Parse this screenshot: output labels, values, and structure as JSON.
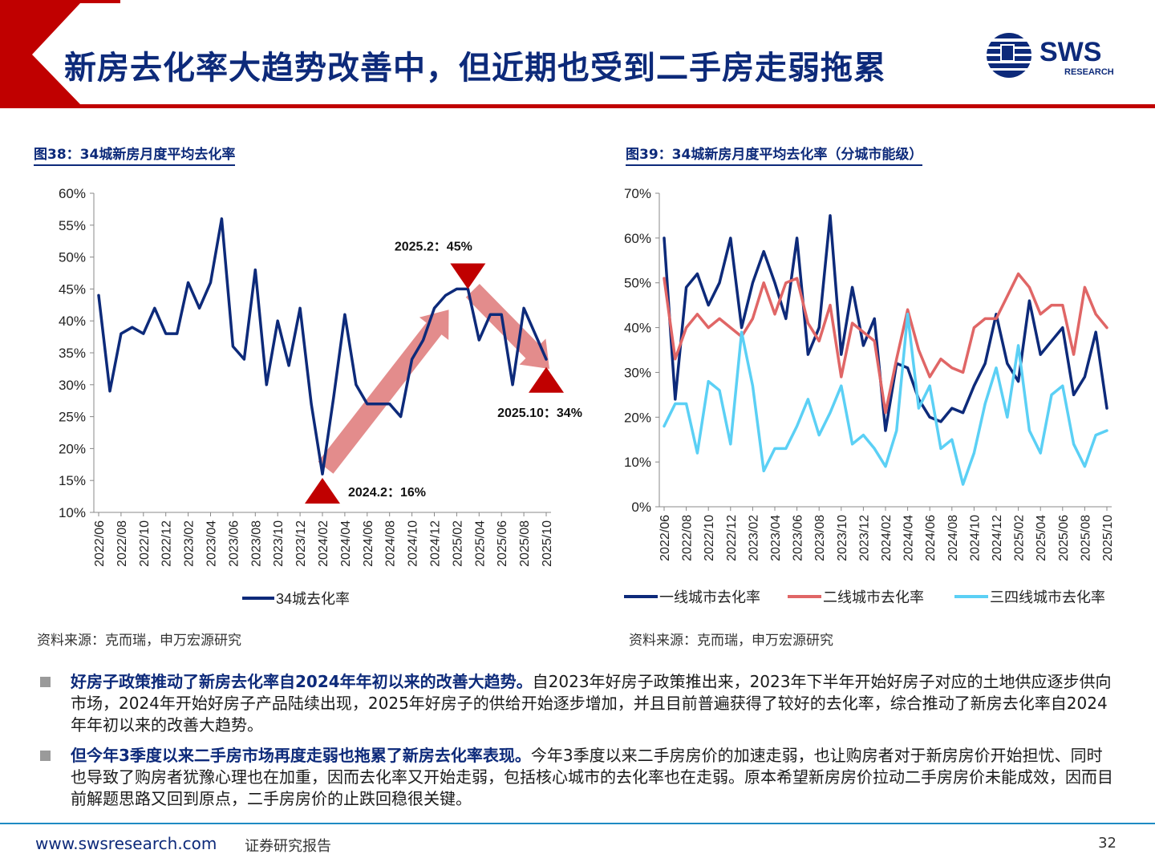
{
  "header": {
    "title": "新房去化率大趋势改善中，但近期也受到二手房走弱拖累",
    "logo_text": "SWS",
    "logo_subtext": "RESEARCH"
  },
  "colors": {
    "brand_navy": "#0d2a7a",
    "brand_red": "#c00000",
    "tier1": "#0d2a7a",
    "tier2": "#e06666",
    "tier3": "#5bd0f5",
    "arrow": "#e07f7f",
    "footer_line": "#1e8bc3"
  },
  "figures": {
    "left_caption": "图38：34城新房月度平均去化率",
    "right_caption": "图39：34城新房月度平均去化率（分城市能级）",
    "left_source": "资料来源：克而瑞，申万宏源研究",
    "right_source": "资料来源：克而瑞，申万宏源研究"
  },
  "chart_data": [
    {
      "type": "line",
      "title": "",
      "xlabel": "",
      "ylabel": "",
      "ylim": [
        0.1,
        0.6
      ],
      "ytick_labels": [
        "10%",
        "15%",
        "20%",
        "25%",
        "30%",
        "35%",
        "40%",
        "45%",
        "50%",
        "55%",
        "60%"
      ],
      "grid": false,
      "legend_position": "bottom",
      "x_tick_labels": [
        "2022/06",
        "2022/08",
        "2022/10",
        "2022/12",
        "2023/02",
        "2023/04",
        "2023/06",
        "2023/08",
        "2023/10",
        "2023/12",
        "2024/02",
        "2024/04",
        "2024/06",
        "2024/08",
        "2024/10",
        "2024/12",
        "2025/02",
        "2025/04",
        "2025/06",
        "2025/08",
        "2025/10"
      ],
      "x": [
        "2022/06",
        "2022/07",
        "2022/08",
        "2022/09",
        "2022/10",
        "2022/11",
        "2022/12",
        "2023/01",
        "2023/02",
        "2023/03",
        "2023/04",
        "2023/05",
        "2023/06",
        "2023/07",
        "2023/08",
        "2023/09",
        "2023/10",
        "2023/11",
        "2023/12",
        "2024/01",
        "2024/02",
        "2024/03",
        "2024/04",
        "2024/05",
        "2024/06",
        "2024/07",
        "2024/08",
        "2024/09",
        "2024/10",
        "2024/11",
        "2024/12",
        "2025/01",
        "2025/02",
        "2025/03",
        "2025/04",
        "2025/05",
        "2025/06",
        "2025/07",
        "2025/08",
        "2025/09",
        "2025/10"
      ],
      "series": [
        {
          "name": "34城去化率",
          "color": "#0d2a7a",
          "values": [
            0.44,
            0.29,
            0.38,
            0.39,
            0.38,
            0.42,
            0.38,
            0.38,
            0.46,
            0.42,
            0.46,
            0.56,
            0.36,
            0.34,
            0.48,
            0.3,
            0.4,
            0.33,
            0.42,
            0.27,
            0.16,
            0.28,
            0.41,
            0.3,
            0.27,
            0.27,
            0.27,
            0.25,
            0.34,
            0.37,
            0.42,
            0.44,
            0.45,
            0.45,
            0.37,
            0.41,
            0.41,
            0.3,
            0.42,
            0.38,
            0.34
          ]
        }
      ],
      "annotations": [
        {
          "label": "2025.2：45%",
          "x": "2025/03"
        },
        {
          "label": "2024.2：16%",
          "x": "2024/02"
        },
        {
          "label": "2025.10：34%",
          "x": "2025/10"
        }
      ]
    },
    {
      "type": "line",
      "title": "",
      "xlabel": "",
      "ylabel": "",
      "ylim": [
        0,
        0.7
      ],
      "ytick_labels": [
        "0%",
        "10%",
        "20%",
        "30%",
        "40%",
        "50%",
        "60%",
        "70%"
      ],
      "grid": false,
      "legend_position": "bottom",
      "x_tick_labels": [
        "2022/06",
        "2022/08",
        "2022/10",
        "2022/12",
        "2023/02",
        "2023/04",
        "2023/06",
        "2023/08",
        "2023/10",
        "2023/12",
        "2024/02",
        "2024/04",
        "2024/06",
        "2024/08",
        "2024/10",
        "2024/12",
        "2025/02",
        "2025/04",
        "2025/06",
        "2025/08",
        "2025/10"
      ],
      "x": [
        "2022/06",
        "2022/07",
        "2022/08",
        "2022/09",
        "2022/10",
        "2022/11",
        "2022/12",
        "2023/01",
        "2023/02",
        "2023/03",
        "2023/04",
        "2023/05",
        "2023/06",
        "2023/07",
        "2023/08",
        "2023/09",
        "2023/10",
        "2023/11",
        "2023/12",
        "2024/01",
        "2024/02",
        "2024/03",
        "2024/04",
        "2024/05",
        "2024/06",
        "2024/07",
        "2024/08",
        "2024/09",
        "2024/10",
        "2024/11",
        "2024/12",
        "2025/01",
        "2025/02",
        "2025/03",
        "2025/04",
        "2025/05",
        "2025/06",
        "2025/07",
        "2025/08",
        "2025/09",
        "2025/10"
      ],
      "series": [
        {
          "name": "一线城市去化率",
          "color": "#0d2a7a",
          "values": [
            0.6,
            0.24,
            0.49,
            0.52,
            0.45,
            0.5,
            0.6,
            0.4,
            0.5,
            0.57,
            0.5,
            0.42,
            0.6,
            0.34,
            0.4,
            0.65,
            0.34,
            0.49,
            0.36,
            0.42,
            0.17,
            0.32,
            0.31,
            0.24,
            0.2,
            0.19,
            0.22,
            0.21,
            0.27,
            0.32,
            0.43,
            0.32,
            0.28,
            0.46,
            0.34,
            0.37,
            0.4,
            0.25,
            0.29,
            0.39,
            0.22
          ]
        },
        {
          "name": "二线城市去化率",
          "color": "#e06666",
          "values": [
            0.51,
            0.33,
            0.4,
            0.43,
            0.4,
            0.42,
            0.4,
            0.38,
            0.42,
            0.5,
            0.43,
            0.5,
            0.51,
            0.41,
            0.37,
            0.45,
            0.29,
            0.41,
            0.39,
            0.37,
            0.21,
            0.33,
            0.44,
            0.35,
            0.29,
            0.33,
            0.31,
            0.3,
            0.4,
            0.42,
            0.42,
            0.47,
            0.52,
            0.49,
            0.43,
            0.45,
            0.45,
            0.34,
            0.49,
            0.43,
            0.4
          ]
        },
        {
          "name": "三四线城市去化率",
          "color": "#5bd0f5",
          "values": [
            0.18,
            0.23,
            0.23,
            0.12,
            0.28,
            0.26,
            0.14,
            0.39,
            0.27,
            0.08,
            0.13,
            0.13,
            0.18,
            0.24,
            0.16,
            0.21,
            0.27,
            0.14,
            0.16,
            0.13,
            0.09,
            0.17,
            0.43,
            0.22,
            0.27,
            0.13,
            0.15,
            0.05,
            0.12,
            0.23,
            0.31,
            0.2,
            0.36,
            0.17,
            0.12,
            0.25,
            0.27,
            0.14,
            0.09,
            0.16,
            0.17
          ]
        }
      ]
    }
  ],
  "bullets": [
    {
      "bold": "好房子政策推动了新房去化率自2024年年初以来的改善大趋势。",
      "text": "自2023年好房子政策推出来，2023年下半年开始好房子对应的土地供应逐步供向市场，2024年开始好房子产品陆续出现，2025年好房子的供给开始逐步增加，并且目前普遍获得了较好的去化率，综合推动了新房去化率自2024年年初以来的改善大趋势。"
    },
    {
      "bold": "但今年3季度以来二手房市场再度走弱也拖累了新房去化率表现。",
      "text": "今年3季度以来二手房房价的加速走弱，也让购房者对于新房房价开始担忧、同时也导致了购房者犹豫心理也在加重，因而去化率又开始走弱，包括核心城市的去化率也在走弱。原本希望新房房价拉动二手房房价未能成效，因而目前解题思路又回到原点，二手房房价的止跌回稳很关键。"
    }
  ],
  "footer": {
    "url": "www.swsresearch.com",
    "label": "证券研究报告",
    "page": "32"
  }
}
